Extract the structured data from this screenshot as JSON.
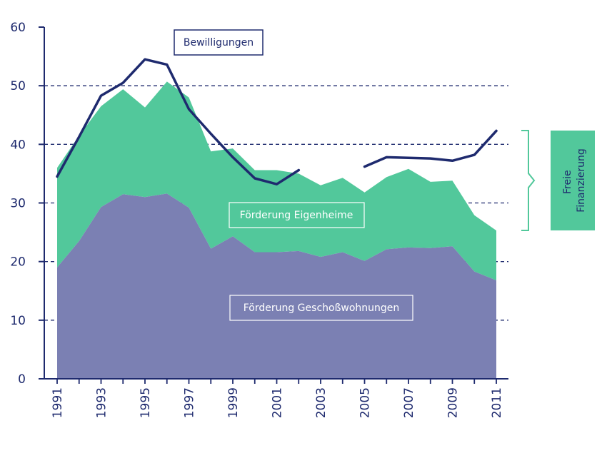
{
  "chart_data": {
    "type": "area",
    "title": "",
    "xlabel": "",
    "ylabel": "",
    "ylim": [
      0,
      60
    ],
    "yticks": [
      0,
      10,
      20,
      30,
      40,
      50,
      60
    ],
    "xlim": [
      1991,
      2011
    ],
    "xticks": [
      "1991",
      "1993",
      "1995",
      "1997",
      "1999",
      "2001",
      "2003",
      "2005",
      "2007",
      "2009",
      "2011"
    ],
    "grid": "dashed horizontal",
    "colors": {
      "axis": "#1e2a6e",
      "geschoss": "#7b80b3",
      "eigenheime": "#52c89b",
      "line": "#1e2a6e"
    },
    "x": [
      1991,
      1992,
      1993,
      1994,
      1995,
      1996,
      1997,
      1998,
      1999,
      2000,
      2001,
      2002,
      2003,
      2004,
      2005,
      2006,
      2007,
      2008,
      2009,
      2010,
      2011
    ],
    "series": [
      {
        "name": "Förderung Geschoßwohnungen",
        "kind": "area",
        "values": [
          19.0,
          23.5,
          29.3,
          31.5,
          31.0,
          31.6,
          29.2,
          22.2,
          24.3,
          21.6,
          21.6,
          21.8,
          20.8,
          21.6,
          20.1,
          22.1,
          22.4,
          22.3,
          22.6,
          18.3,
          16.8
        ]
      },
      {
        "name": "Förderung Eigenheime",
        "kind": "area-stacked-top",
        "values": [
          36.0,
          41.5,
          46.5,
          49.4,
          46.3,
          50.7,
          48.0,
          38.8,
          39.3,
          35.6,
          35.6,
          35.0,
          33.0,
          34.3,
          31.8,
          34.4,
          35.8,
          33.6,
          33.8,
          27.9,
          25.3
        ]
      },
      {
        "name": "Bewilligungen",
        "kind": "line",
        "values": [
          34.5,
          41.3,
          48.3,
          50.5,
          54.5,
          53.6,
          46.0,
          41.8,
          37.8,
          34.2,
          33.2,
          35.6,
          null,
          null,
          36.2,
          37.8,
          37.7,
          37.6,
          37.2,
          38.2,
          42.3
        ]
      }
    ],
    "annotations": {
      "bewilligungen": "Bewilligungen",
      "eigenheime": "Förderung Eigenheime",
      "geschoss": "Förderung Geschoßwohnungen",
      "freie": [
        "Freie",
        "Finanzierung"
      ]
    }
  }
}
